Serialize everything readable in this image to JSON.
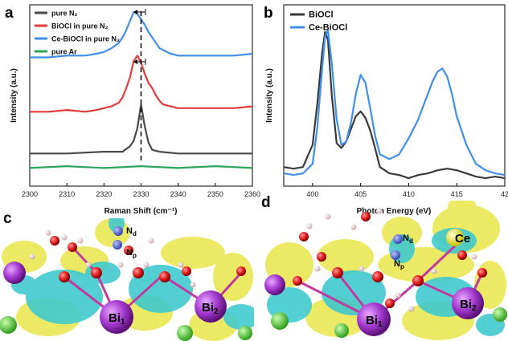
{
  "panels": {
    "a": "a",
    "b": "b",
    "c": "c",
    "d": "d"
  },
  "chart_data": [
    {
      "type": "line",
      "panel": "a",
      "xlabel": "Raman Shift (cm⁻¹)",
      "ylabel": "Intensity (a.u.)",
      "xlim": [
        2300,
        2360
      ],
      "x_ticks": [
        "2300",
        "2310",
        "2320",
        "2330",
        "2340",
        "2350",
        "2360"
      ],
      "y_ticks_visible": false,
      "legend_position": "top-left",
      "legend": [
        "pure N₂",
        "BiOCl in pure N₂",
        "Ce-BiOCl in pure N₂",
        "pure Ar"
      ],
      "reference_line_x": 2330,
      "series": [
        {
          "name": "pure N₂",
          "color": "#4a4a4a",
          "x": [
            2300,
            2310,
            2320,
            2325,
            2327,
            2328,
            2329,
            2330,
            2331,
            2332,
            2333,
            2335,
            2340,
            2350,
            2360
          ],
          "y": [
            0.3,
            0.3,
            0.31,
            0.31,
            0.34,
            0.37,
            0.44,
            0.57,
            0.45,
            0.36,
            0.32,
            0.31,
            0.3,
            0.3,
            0.3
          ]
        },
        {
          "name": "BiOCl in pure N₂",
          "color": "#e53b3b",
          "x": [
            2300,
            2305,
            2310,
            2315,
            2318,
            2320,
            2322,
            2324,
            2325,
            2326,
            2327,
            2328,
            2329,
            2330,
            2331,
            2332,
            2333,
            2334,
            2335,
            2336,
            2338,
            2340,
            2345,
            2350,
            2355,
            2360
          ],
          "y": [
            0.53,
            0.53,
            0.54,
            0.53,
            0.54,
            0.55,
            0.56,
            0.58,
            0.61,
            0.66,
            0.72,
            0.81,
            0.84,
            0.8,
            0.74,
            0.69,
            0.66,
            0.62,
            0.59,
            0.57,
            0.56,
            0.55,
            0.55,
            0.55,
            0.55,
            0.56
          ]
        },
        {
          "name": "Ce-BiOCl in pure N₂",
          "color": "#3f8fe8",
          "x": [
            2300,
            2305,
            2310,
            2315,
            2318,
            2320,
            2322,
            2324,
            2325,
            2326,
            2327,
            2328,
            2329,
            2330,
            2331,
            2332,
            2333,
            2334,
            2335,
            2336,
            2338,
            2340,
            2345,
            2350,
            2355,
            2360
          ],
          "y": [
            0.83,
            0.83,
            0.84,
            0.84,
            0.85,
            0.86,
            0.88,
            0.91,
            0.94,
            0.98,
            1.03,
            1.08,
            1.07,
            1.04,
            1.01,
            0.97,
            0.94,
            0.91,
            0.88,
            0.87,
            0.85,
            0.84,
            0.84,
            0.84,
            0.84,
            0.85
          ]
        },
        {
          "name": "pure Ar",
          "color": "#2ca65a",
          "x": [
            2300,
            2310,
            2320,
            2330,
            2340,
            2350,
            2360
          ],
          "y": [
            0.22,
            0.23,
            0.22,
            0.23,
            0.22,
            0.23,
            0.22
          ]
        }
      ]
    },
    {
      "type": "line",
      "panel": "b",
      "xlabel": "Photon Energy (eV)",
      "ylabel": "Intensity (a.u.)",
      "xlim": [
        397,
        420
      ],
      "x_ticks": [
        "400",
        "405",
        "410",
        "415",
        "42"
      ],
      "y_ticks_visible": false,
      "legend_position": "top-left",
      "legend": [
        "BiOCl",
        "Ce-BiOCl"
      ],
      "series": [
        {
          "name": "BiOCl",
          "color": "#3a3a3a",
          "x": [
            397,
            398,
            399,
            400,
            400.5,
            401,
            401.3,
            401.6,
            402,
            402.5,
            403,
            403.5,
            404,
            404.5,
            405,
            405.5,
            406,
            406.5,
            407,
            408,
            409,
            410,
            411,
            412,
            413,
            414,
            415,
            416,
            417,
            418,
            419,
            420
          ],
          "y": [
            0.1,
            0.09,
            0.1,
            0.24,
            0.5,
            0.82,
            0.95,
            0.9,
            0.55,
            0.25,
            0.22,
            0.26,
            0.34,
            0.42,
            0.45,
            0.41,
            0.33,
            0.22,
            0.1,
            0.06,
            0.05,
            0.03,
            0.05,
            0.06,
            0.08,
            0.09,
            0.08,
            0.06,
            0.04,
            0.03,
            0.04,
            0.03
          ]
        },
        {
          "name": "Ce-BiOCl",
          "color": "#3f8fe8",
          "x": [
            397,
            398,
            399,
            400,
            400.5,
            401,
            401.3,
            401.6,
            402,
            402.5,
            403,
            403.5,
            404,
            404.5,
            405,
            405.5,
            406,
            406.5,
            407,
            408,
            409,
            410,
            411,
            412,
            412.5,
            413,
            413.5,
            414,
            414.5,
            415,
            416,
            417,
            418,
            419,
            420
          ],
          "y": [
            0.06,
            0.05,
            0.06,
            0.12,
            0.35,
            0.72,
            0.92,
            0.96,
            0.75,
            0.4,
            0.24,
            0.26,
            0.38,
            0.56,
            0.68,
            0.63,
            0.47,
            0.3,
            0.18,
            0.15,
            0.18,
            0.28,
            0.4,
            0.56,
            0.64,
            0.7,
            0.72,
            0.67,
            0.56,
            0.42,
            0.24,
            0.12,
            0.08,
            0.06,
            0.05
          ]
        }
      ]
    }
  ],
  "structure_c": {
    "labels": {
      "bi1": "Bi",
      "bi1_sub": "1",
      "bi2": "Bi",
      "bi2_sub": "2",
      "nd": "N",
      "nd_sub": "d",
      "np": "N",
      "np_sub": "p"
    }
  },
  "structure_d": {
    "labels": {
      "bi1": "Bi",
      "bi1_sub": "1",
      "bi2": "Bi",
      "bi2_sub": "2",
      "nd": "N",
      "nd_sub": "d",
      "np": "N",
      "np_sub": "p",
      "ce": "Ce"
    }
  },
  "colors": {
    "isosurface_yellow": "#e9e64a",
    "isosurface_cyan": "#3cc9cf",
    "bi_atom": "#a53bd0",
    "o_atom": "#e01a1a",
    "cl_atom": "#5bd63b",
    "h_atom": "#f2e4e4"
  }
}
